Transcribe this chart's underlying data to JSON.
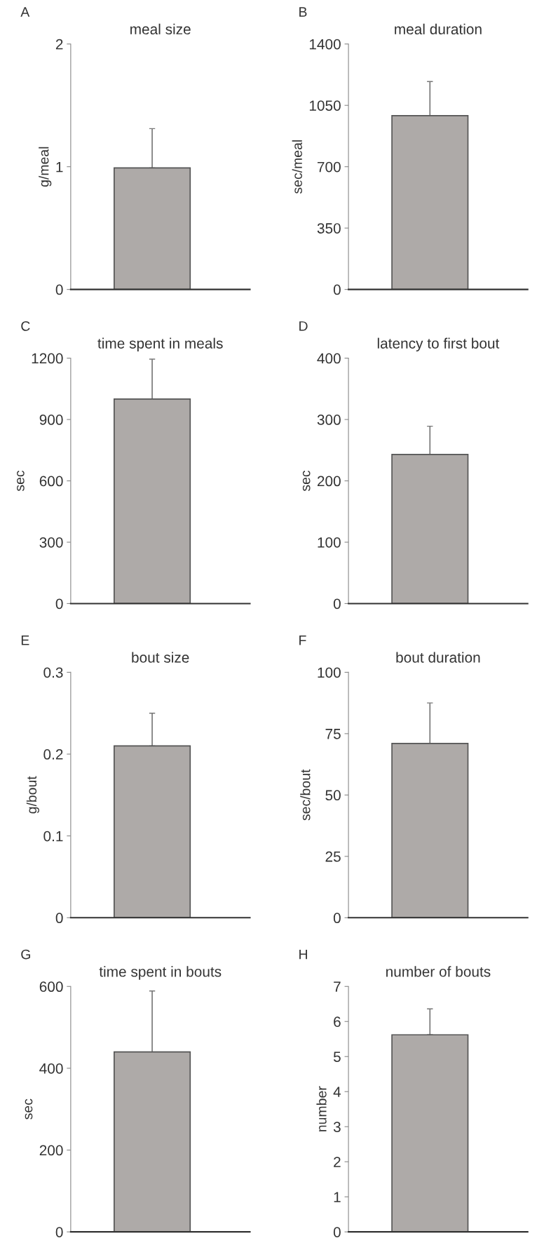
{
  "chart_data": [
    {
      "type": "bar",
      "title": "meal size",
      "ylabel": "g/meal",
      "annotations": [
        "A"
      ],
      "categories": [
        null
      ],
      "values": [
        0.99
      ],
      "errors": [
        [
          0.99,
          1.31
        ]
      ],
      "color": "#aeaaa8",
      "ylim": [
        0,
        2
      ],
      "yticks": [
        0,
        1,
        2
      ],
      "grid": false,
      "legend": false
    },
    {
      "type": "bar",
      "title": "meal duration",
      "ylabel": "sec/meal",
      "annotations": [
        "B"
      ],
      "categories": [
        null
      ],
      "values": [
        991
      ],
      "errors": [
        [
          991,
          1186
        ]
      ],
      "color": "#aeaaa8",
      "ylim": [
        0,
        1400
      ],
      "yticks": [
        0,
        350,
        700,
        1050,
        1400
      ],
      "grid": false,
      "legend": false
    },
    {
      "type": "bar",
      "title": "time spent in meals",
      "ylabel": "sec",
      "annotations": [
        "C"
      ],
      "categories": [
        null
      ],
      "values": [
        1000
      ],
      "errors": [
        [
          1000,
          1195
        ]
      ],
      "color": "#aeaaa8",
      "ylim": [
        0,
        1200
      ],
      "yticks": [
        0,
        300,
        600,
        900,
        1200
      ],
      "grid": false,
      "legend": false
    },
    {
      "type": "bar",
      "title": "latency to first bout",
      "ylabel": "sec",
      "annotations": [
        "D"
      ],
      "categories": [
        null
      ],
      "values": [
        243
      ],
      "errors": [
        [
          243,
          289
        ]
      ],
      "color": "#aeaaa8",
      "ylim": [
        0,
        400
      ],
      "yticks": [
        0,
        100,
        200,
        300,
        400
      ],
      "grid": false,
      "legend": false
    },
    {
      "type": "bar",
      "title": "bout size",
      "ylabel": "g/bout",
      "annotations": [
        "E"
      ],
      "categories": [
        null
      ],
      "values": [
        0.21
      ],
      "errors": [
        [
          0.21,
          0.25
        ]
      ],
      "color": "#aeaaa8",
      "ylim": [
        0,
        0.3
      ],
      "yticks": [
        0,
        0.1,
        0.2,
        0.3
      ],
      "grid": false,
      "legend": false
    },
    {
      "type": "bar",
      "title": "bout duration",
      "ylabel": "sec/bout",
      "annotations": [
        "F"
      ],
      "categories": [
        null
      ],
      "values": [
        71
      ],
      "errors": [
        [
          71,
          87.5
        ]
      ],
      "color": "#aeaaa8",
      "ylim": [
        0,
        100
      ],
      "yticks": [
        0,
        25,
        50,
        75,
        100
      ],
      "grid": false,
      "legend": false
    },
    {
      "type": "bar",
      "title": "time spent in bouts",
      "ylabel": "sec",
      "annotations": [
        "G"
      ],
      "categories": [
        null
      ],
      "values": [
        440
      ],
      "errors": [
        [
          440,
          589
        ]
      ],
      "color": "#aeaaa8",
      "ylim": [
        0,
        600
      ],
      "yticks": [
        0,
        200,
        400,
        600
      ],
      "grid": false,
      "legend": false
    },
    {
      "type": "bar",
      "title": "number of bouts",
      "ylabel": "number",
      "annotations": [
        "H"
      ],
      "categories": [
        null
      ],
      "values": [
        5.62
      ],
      "errors": [
        [
          5.62,
          6.36
        ]
      ],
      "color": "#aeaaa8",
      "ylim": [
        0,
        7
      ],
      "yticks": [
        0,
        1,
        2,
        3,
        4,
        5,
        6,
        7
      ],
      "grid": false,
      "legend": false
    }
  ]
}
